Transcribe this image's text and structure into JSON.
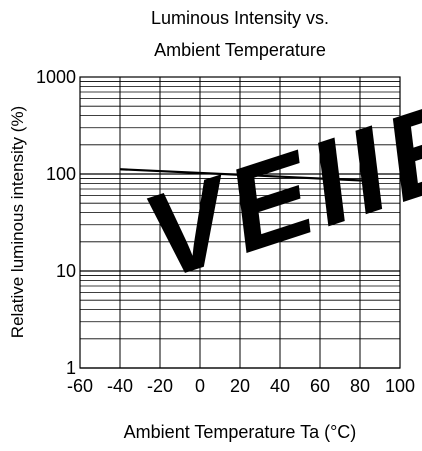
{
  "chart_data": {
    "type": "line",
    "title_lines": [
      "Luminous Intensity vs.",
      "Ambient Temperature"
    ],
    "xlabel": "Ambient Temperature Ta (°C)",
    "ylabel": "Relative luminous intensity  (%)",
    "x_scale": "linear",
    "y_scale": "log",
    "xlim": [
      -60,
      100
    ],
    "ylim": [
      1,
      1000
    ],
    "x_ticks": [
      -60,
      -40,
      -20,
      0,
      20,
      40,
      60,
      80,
      100
    ],
    "x_tick_labels": [
      "-60",
      "-40",
      "-20",
      "0",
      "20",
      "40",
      "60",
      "80",
      "100"
    ],
    "y_tick_labels": [
      {
        "value": 1,
        "label": "1"
      },
      {
        "value": 10,
        "label": "10"
      },
      {
        "value": 100,
        "label": "100"
      },
      {
        "value": 1000,
        "label": "1000"
      }
    ],
    "grid": true,
    "series": [
      {
        "x": [
          -40,
          85
        ],
        "y": [
          112,
          85
        ]
      }
    ]
  },
  "watermark": {
    "text": "VEIIE",
    "color": "#dfe9f5"
  },
  "colors": {
    "line": "#000000",
    "grid": "#000000",
    "axis": "#000000"
  }
}
